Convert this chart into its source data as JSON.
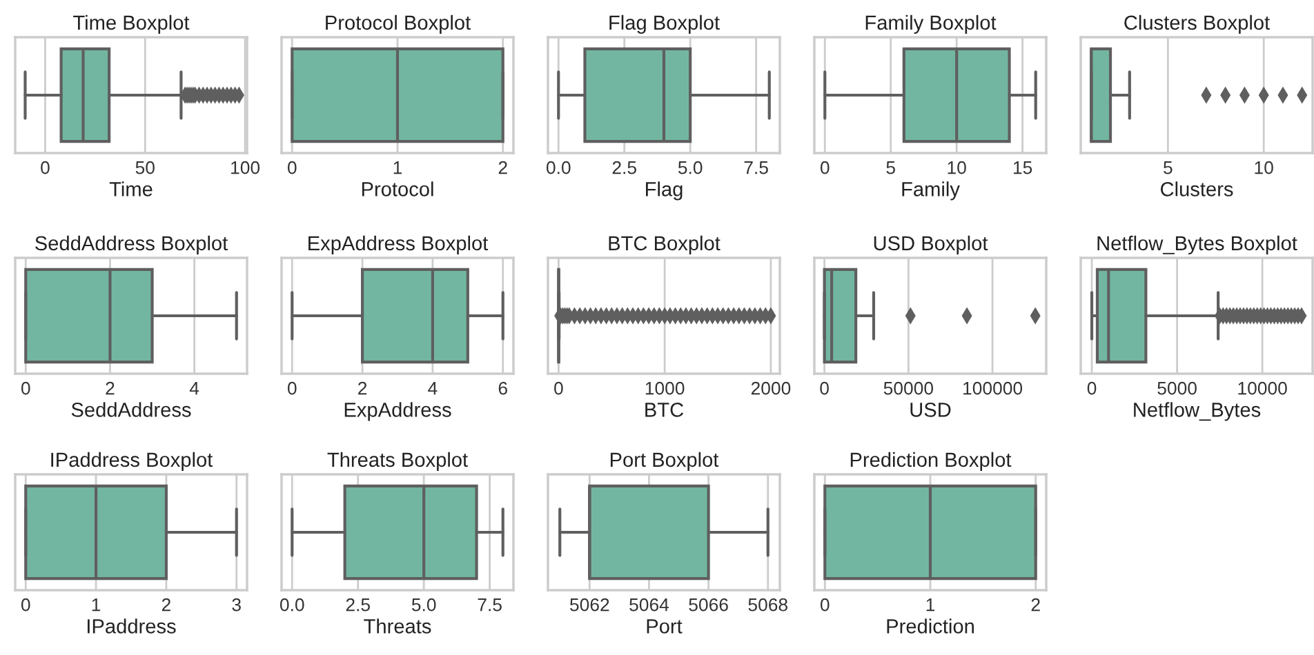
{
  "chart_data": [
    {
      "type": "box",
      "title": "Time Boxplot",
      "xlabel": "Time",
      "orientation": "horizontal",
      "categories": [
        null
      ],
      "color": "#72b6a1",
      "grid": "x",
      "tick_labels": "x",
      "xlim": [
        -15,
        101
      ],
      "xticks": [
        0,
        50,
        100
      ],
      "boxes": [
        {
          "low": -10,
          "q1": 8,
          "median": 19,
          "q3": 32,
          "high": 68,
          "outliers": [
            70,
            71,
            72,
            73,
            74,
            75,
            77,
            79,
            81,
            83,
            85,
            87,
            89,
            91,
            93,
            95,
            97
          ]
        }
      ]
    },
    {
      "type": "box",
      "title": "Protocol Boxplot",
      "xlabel": "Protocol",
      "orientation": "horizontal",
      "categories": [
        null
      ],
      "color": "#72b6a1",
      "grid": "x",
      "tick_labels": "x",
      "xlim": [
        -0.1,
        2.1
      ],
      "xticks": [
        0,
        1,
        2
      ],
      "boxes": [
        {
          "low": 0,
          "q1": 0,
          "median": 1,
          "q3": 2,
          "high": 2
        }
      ]
    },
    {
      "type": "box",
      "title": "Flag Boxplot",
      "xlabel": "Flag",
      "orientation": "horizontal",
      "categories": [
        null
      ],
      "color": "#72b6a1",
      "grid": "x",
      "tick_labels": "x",
      "xlim": [
        -0.4,
        8.4
      ],
      "xticks": [
        {
          "value": 0,
          "label": "0.0"
        },
        {
          "value": 2.5,
          "label": "2.5"
        },
        {
          "value": 5,
          "label": "5.0"
        },
        {
          "value": 7.5,
          "label": "7.5"
        }
      ],
      "boxes": [
        {
          "low": 0,
          "q1": 1,
          "median": 4,
          "q3": 5,
          "high": 8
        }
      ]
    },
    {
      "type": "box",
      "title": "Family Boxplot",
      "xlabel": "Family",
      "orientation": "horizontal",
      "categories": [
        null
      ],
      "color": "#72b6a1",
      "grid": "x",
      "tick_labels": "x",
      "xlim": [
        -0.8,
        16.8
      ],
      "xticks": [
        0,
        5,
        10,
        15
      ],
      "boxes": [
        {
          "low": 0,
          "q1": 6,
          "median": 10,
          "q3": 14,
          "high": 16
        }
      ]
    },
    {
      "type": "box",
      "title": "Clusters Boxplot",
      "xlabel": "Clusters",
      "orientation": "horizontal",
      "categories": [
        null
      ],
      "color": "#72b6a1",
      "grid": "x",
      "tick_labels": "x",
      "xlim": [
        0.45,
        12.55
      ],
      "xticks": [
        5,
        10
      ],
      "boxes": [
        {
          "low": 1,
          "q1": 1,
          "median": 1,
          "q3": 2,
          "high": 3,
          "outliers": [
            7,
            8,
            9,
            10,
            11,
            12
          ]
        }
      ]
    },
    {
      "type": "box",
      "title": "SeddAddress Boxplot",
      "xlabel": "SeddAddress",
      "orientation": "horizontal",
      "categories": [
        null
      ],
      "color": "#72b6a1",
      "grid": "x",
      "tick_labels": "x",
      "xlim": [
        -0.25,
        5.25
      ],
      "xticks": [
        0,
        2,
        4
      ],
      "boxes": [
        {
          "low": 0,
          "q1": 0,
          "median": 2,
          "q3": 3,
          "high": 5
        }
      ]
    },
    {
      "type": "box",
      "title": "ExpAddress Boxplot",
      "xlabel": "ExpAddress",
      "orientation": "horizontal",
      "categories": [
        null
      ],
      "color": "#72b6a1",
      "grid": "x",
      "tick_labels": "x",
      "xlim": [
        -0.3,
        6.3
      ],
      "xticks": [
        0,
        2,
        4,
        6
      ],
      "boxes": [
        {
          "low": 0,
          "q1": 2,
          "median": 4,
          "q3": 5,
          "high": 6
        }
      ]
    },
    {
      "type": "box",
      "title": "BTC Boxplot",
      "xlabel": "BTC",
      "orientation": "horizontal",
      "categories": [
        null
      ],
      "color": "#72b6a1",
      "grid": "x",
      "tick_labels": "x",
      "xlim": [
        -100,
        2085
      ],
      "xticks": [
        0,
        1000,
        2000
      ],
      "boxes": [
        {
          "low": 0,
          "q1": 0,
          "median": 1,
          "q3": 2,
          "high": 5,
          "outliers": [
            8,
            20,
            40,
            60,
            80,
            100,
            150,
            200,
            250,
            300,
            350,
            400,
            450,
            500,
            550,
            600,
            650,
            700,
            750,
            800,
            850,
            900,
            950,
            1000,
            1050,
            1100,
            1150,
            1200,
            1250,
            1300,
            1350,
            1400,
            1450,
            1500,
            1550,
            1600,
            1650,
            1700,
            1750,
            1800,
            1850,
            1900,
            1950,
            2000
          ]
        }
      ]
    },
    {
      "type": "box",
      "title": "USD Boxplot",
      "xlabel": "USD",
      "orientation": "horizontal",
      "categories": [
        null
      ],
      "color": "#72b6a1",
      "grid": "x",
      "tick_labels": "x",
      "xlim": [
        -6000,
        132000
      ],
      "xticks": [
        0,
        50000,
        100000
      ],
      "boxes": [
        {
          "low": 0,
          "q1": 0,
          "median": 4300,
          "q3": 18700,
          "high": 29300,
          "outliers": [
            51200,
            84800,
            125500
          ]
        }
      ]
    },
    {
      "type": "box",
      "title": "Netflow_Bytes Boxplot",
      "xlabel": "Netflow_Bytes",
      "orientation": "horizontal",
      "categories": [
        null
      ],
      "color": "#72b6a1",
      "grid": "x",
      "tick_labels": "x",
      "xlim": [
        -650,
        12950
      ],
      "xticks": [
        0,
        5000,
        10000
      ],
      "boxes": [
        {
          "low": 0,
          "q1": 320,
          "median": 980,
          "q3": 3170,
          "high": 7410,
          "outliers": [
            7500,
            7700,
            7900,
            8100,
            8300,
            8500,
            8700,
            8900,
            9100,
            9300,
            9500,
            9700,
            9900,
            10100,
            10300,
            10500,
            10700,
            10900,
            11100,
            11300,
            11500,
            11700,
            11900,
            12100,
            12300
          ]
        }
      ]
    },
    {
      "type": "box",
      "title": "IPaddress Boxplot",
      "xlabel": "IPaddress",
      "orientation": "horizontal",
      "categories": [
        null
      ],
      "color": "#72b6a1",
      "grid": "x",
      "tick_labels": "x",
      "xlim": [
        -0.15,
        3.15
      ],
      "xticks": [
        0,
        1,
        2,
        3
      ],
      "boxes": [
        {
          "low": 0,
          "q1": 0,
          "median": 1,
          "q3": 2,
          "high": 3
        }
      ]
    },
    {
      "type": "box",
      "title": "Threats Boxplot",
      "xlabel": "Threats",
      "orientation": "horizontal",
      "categories": [
        null
      ],
      "color": "#72b6a1",
      "grid": "x",
      "tick_labels": "x",
      "xlim": [
        -0.4,
        8.4
      ],
      "xticks": [
        {
          "value": 0,
          "label": "0.0"
        },
        {
          "value": 2.5,
          "label": "2.5"
        },
        {
          "value": 5,
          "label": "5.0"
        },
        {
          "value": 7.5,
          "label": "7.5"
        }
      ],
      "boxes": [
        {
          "low": 0,
          "q1": 2,
          "median": 5,
          "q3": 7,
          "high": 8
        }
      ]
    },
    {
      "type": "box",
      "title": "Port Boxplot",
      "xlabel": "Port",
      "orientation": "horizontal",
      "categories": [
        null
      ],
      "color": "#72b6a1",
      "grid": "x",
      "tick_labels": "x",
      "xlim": [
        5060.6,
        5068.4
      ],
      "xticks": [
        5062,
        5064,
        5066,
        5068
      ],
      "boxes": [
        {
          "low": 5061,
          "q1": 5062,
          "median": 5062,
          "q3": 5066,
          "high": 5068
        }
      ]
    },
    {
      "type": "box",
      "title": "Prediction Boxplot",
      "xlabel": "Prediction",
      "orientation": "horizontal",
      "categories": [
        null
      ],
      "color": "#72b6a1",
      "grid": "x",
      "tick_labels": "x",
      "xlim": [
        -0.1,
        2.1
      ],
      "xticks": [
        0,
        1,
        2
      ],
      "boxes": [
        {
          "low": 0,
          "q1": 0,
          "median": 1,
          "q3": 2,
          "high": 2
        }
      ]
    }
  ]
}
